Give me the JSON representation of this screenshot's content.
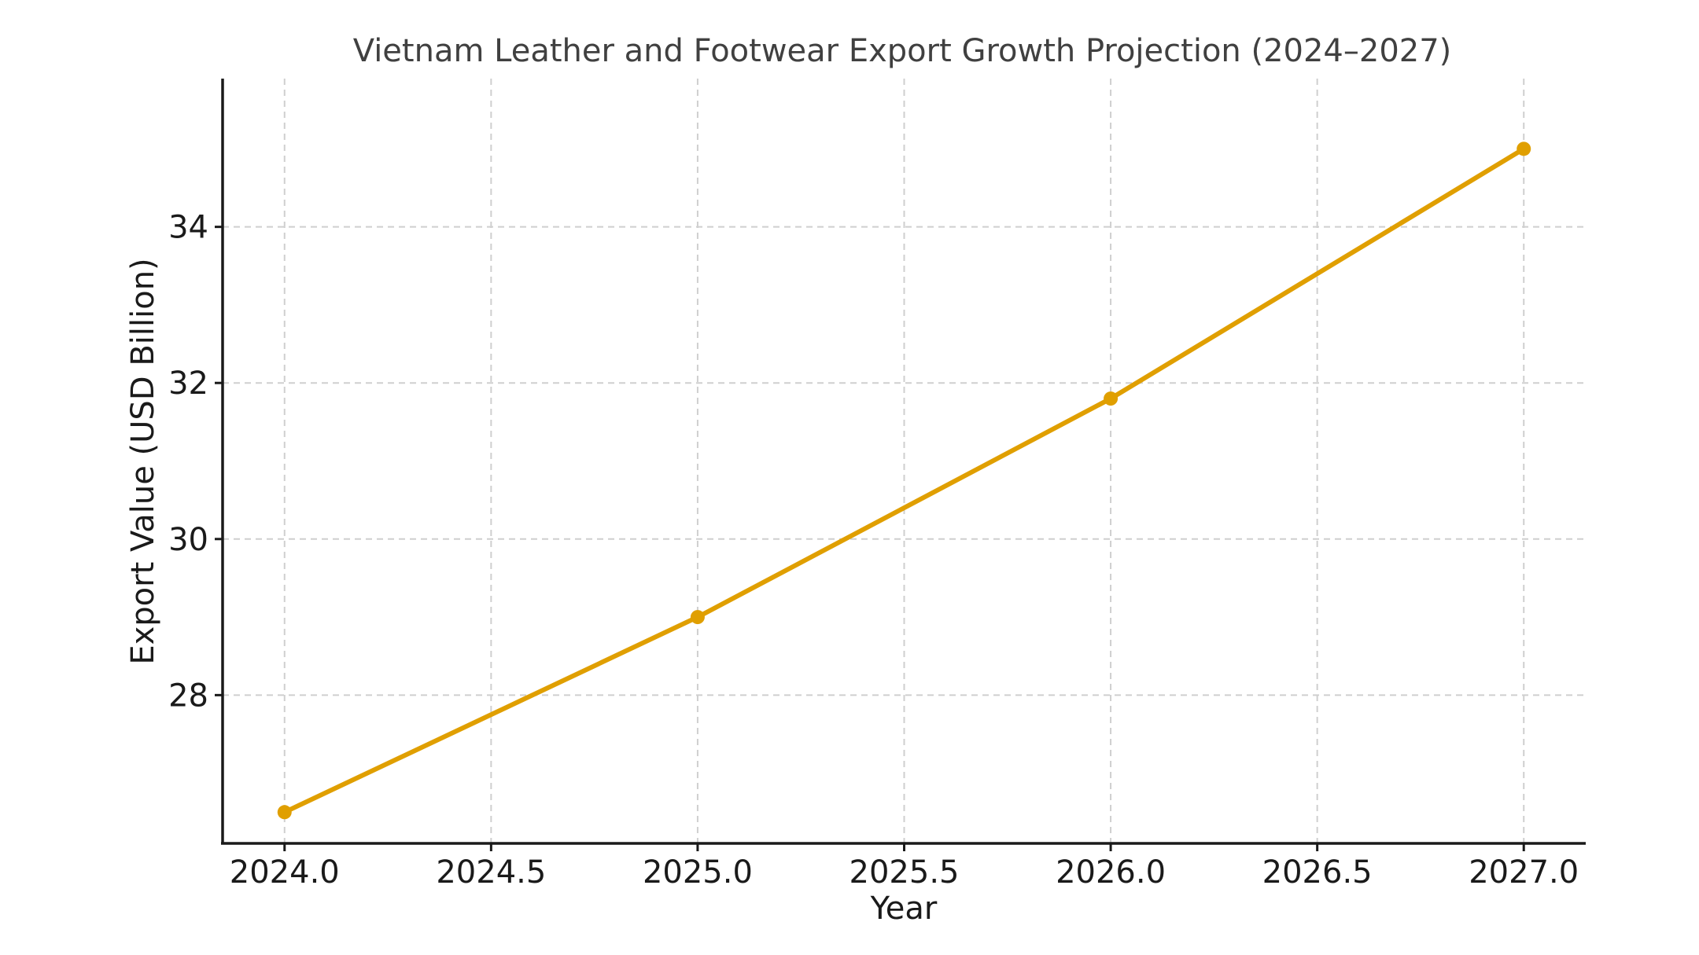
{
  "chart_data": {
    "type": "line",
    "title": "Vietnam Leather and Footwear Export Growth Projection (2024–2027)",
    "xlabel": "Year",
    "ylabel": "Export Value (USD Billion)",
    "x": [
      2024,
      2025,
      2026,
      2027
    ],
    "series": [
      {
        "values": [
          26.5,
          29.0,
          31.8,
          35.0
        ],
        "color": "#E09F00",
        "marker": "circle"
      }
    ],
    "xlim": [
      2023.85,
      2027.15
    ],
    "ylim": [
      26.1,
      35.9
    ],
    "xticks": [
      2024.0,
      2024.5,
      2025.0,
      2025.5,
      2026.0,
      2026.5,
      2027.0
    ],
    "xtick_labels": [
      "2024.0",
      "2024.5",
      "2025.0",
      "2025.5",
      "2026.0",
      "2026.5",
      "2027.0"
    ],
    "yticks": [
      28,
      30,
      32,
      34
    ],
    "ytick_labels": [
      "28",
      "30",
      "32",
      "34"
    ],
    "grid": true,
    "grid_style": "dashed"
  }
}
